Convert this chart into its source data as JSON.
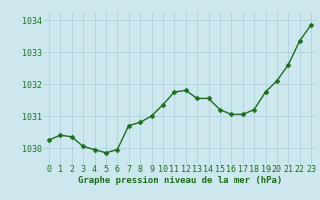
{
  "x": [
    0,
    1,
    2,
    3,
    4,
    5,
    6,
    7,
    8,
    9,
    10,
    11,
    12,
    13,
    14,
    15,
    16,
    17,
    18,
    19,
    20,
    21,
    22,
    23
  ],
  "y": [
    1030.25,
    1030.4,
    1030.35,
    1030.05,
    1029.95,
    1029.85,
    1029.95,
    1030.7,
    1030.8,
    1031.0,
    1031.35,
    1031.75,
    1031.8,
    1031.55,
    1031.55,
    1031.2,
    1031.05,
    1031.05,
    1031.2,
    1031.75,
    1032.1,
    1032.6,
    1033.35,
    1033.85
  ],
  "line_color": "#1a6e1a",
  "marker": "D",
  "marker_size": 2.5,
  "bg_color": "#cce8ee",
  "grid_color": "#aaccd8",
  "xlabel": "Graphe pression niveau de la mer (hPa)",
  "xlabel_color": "#1a6e1a",
  "tick_color": "#1a6e1a",
  "ylim": [
    1029.5,
    1034.25
  ],
  "xlim": [
    -0.5,
    23.5
  ],
  "yticks": [
    1030,
    1031,
    1032,
    1033,
    1034
  ],
  "xtick_labels": [
    "0",
    "1",
    "2",
    "3",
    "4",
    "5",
    "6",
    "7",
    "8",
    "9",
    "10",
    "11",
    "12",
    "13",
    "14",
    "15",
    "16",
    "17",
    "18",
    "19",
    "20",
    "21",
    "22",
    "23"
  ],
  "xlabel_fontsize": 6.5,
  "tick_fontsize": 6.0,
  "line_width": 1.0
}
